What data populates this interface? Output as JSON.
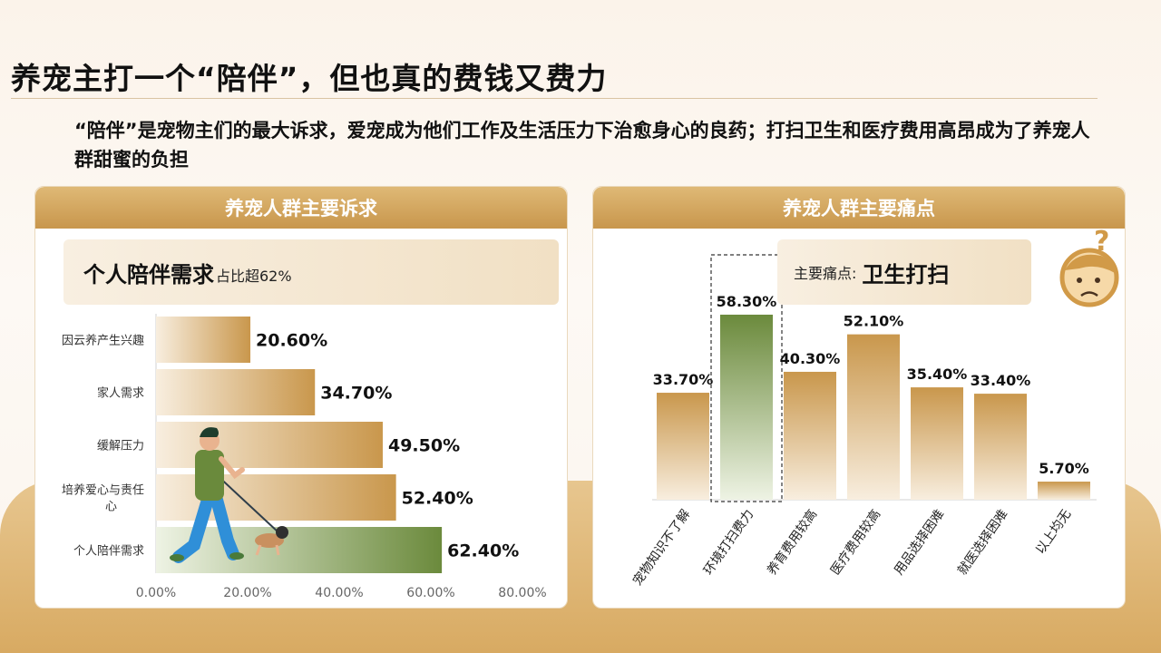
{
  "title": "养宠主打一个“陪伴”，但也真的费钱又费力",
  "subtitle": "“陪伴”是宠物主们的最大诉求，爱宠成为他们工作及生活压力下治愈身心的良药；打扫卫生和医疗费用高昂成为了养宠人群甜蜜的负担",
  "left_panel": {
    "header": "养宠人群主要诉求",
    "highlight_main": "个人陪伴需求",
    "highlight_sub": "占比超62%"
  },
  "right_panel": {
    "header": "养宠人群主要痛点",
    "pain_label": "主要痛点:",
    "pain_value": "卫生打扫"
  },
  "colors": {
    "gold_dark": "#c9974c",
    "gold_light": "#f7ecdc",
    "green_dark": "#6b8a3c",
    "green_light": "#e9f0dd"
  },
  "chart_data": [
    {
      "type": "bar",
      "orientation": "horizontal",
      "categories": [
        "因云养产生兴趣",
        "家人需求",
        "缓解压力",
        "培养爱心与责任心",
        "个人陪伴需求"
      ],
      "values": [
        20.6,
        34.7,
        49.5,
        52.4,
        62.4
      ],
      "value_labels": [
        "20.60%",
        "34.70%",
        "49.50%",
        "52.40%",
        "62.40%"
      ],
      "xlim": [
        0,
        80
      ],
      "x_ticks": [
        "0.00%",
        "20.00%",
        "40.00%",
        "60.00%",
        "80.00%"
      ],
      "highlight_category": "个人陪伴需求",
      "grid": false
    },
    {
      "type": "bar",
      "orientation": "vertical",
      "categories": [
        "宠物知识不了解",
        "环境打扫费力",
        "养育费用较高",
        "医疗费用较高",
        "用品选择困难",
        "就医选择困难",
        "以上均无"
      ],
      "values": [
        33.7,
        58.3,
        40.3,
        52.1,
        35.4,
        33.4,
        5.7
      ],
      "value_labels": [
        "33.70%",
        "58.30%",
        "40.30%",
        "52.10%",
        "35.40%",
        "33.40%",
        "5.70%"
      ],
      "ylim": [
        0,
        70
      ],
      "highlight_category": "环境打扫费力",
      "grid": false
    }
  ]
}
